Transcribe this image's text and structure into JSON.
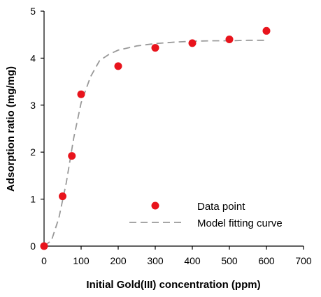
{
  "chart_data": {
    "type": "scatter",
    "title": "",
    "xlabel": "Initial Gold(III) concentration (ppm)",
    "ylabel": "Adsorption ratio (mg/mg)",
    "xlim": [
      0,
      700
    ],
    "ylim": [
      0,
      5
    ],
    "x_ticks": [
      "0",
      "100",
      "200",
      "300",
      "400",
      "500",
      "600",
      "700"
    ],
    "y_ticks": [
      "0",
      "1",
      "2",
      "3",
      "4",
      "5"
    ],
    "grid": false,
    "legend_position": "bottom-right",
    "series": [
      {
        "name": "Data point",
        "kind": "scatter",
        "color": "#e8141c",
        "x": [
          0,
          50,
          75,
          100,
          200,
          300,
          400,
          500,
          600
        ],
        "y": [
          0.0,
          1.06,
          1.92,
          3.23,
          3.83,
          4.22,
          4.32,
          4.4,
          4.58
        ]
      },
      {
        "name": "Model fitting curve",
        "kind": "line",
        "style": "dashed",
        "color": "#999999",
        "x": [
          0,
          20,
          40,
          60,
          80,
          100,
          125,
          150,
          175,
          200,
          250,
          300,
          350,
          400,
          450,
          500,
          550,
          600
        ],
        "y": [
          0.0,
          0.12,
          0.6,
          1.35,
          2.3,
          3.05,
          3.6,
          3.95,
          4.08,
          4.17,
          4.26,
          4.31,
          4.34,
          4.36,
          4.37,
          4.37,
          4.38,
          4.38
        ]
      }
    ]
  }
}
